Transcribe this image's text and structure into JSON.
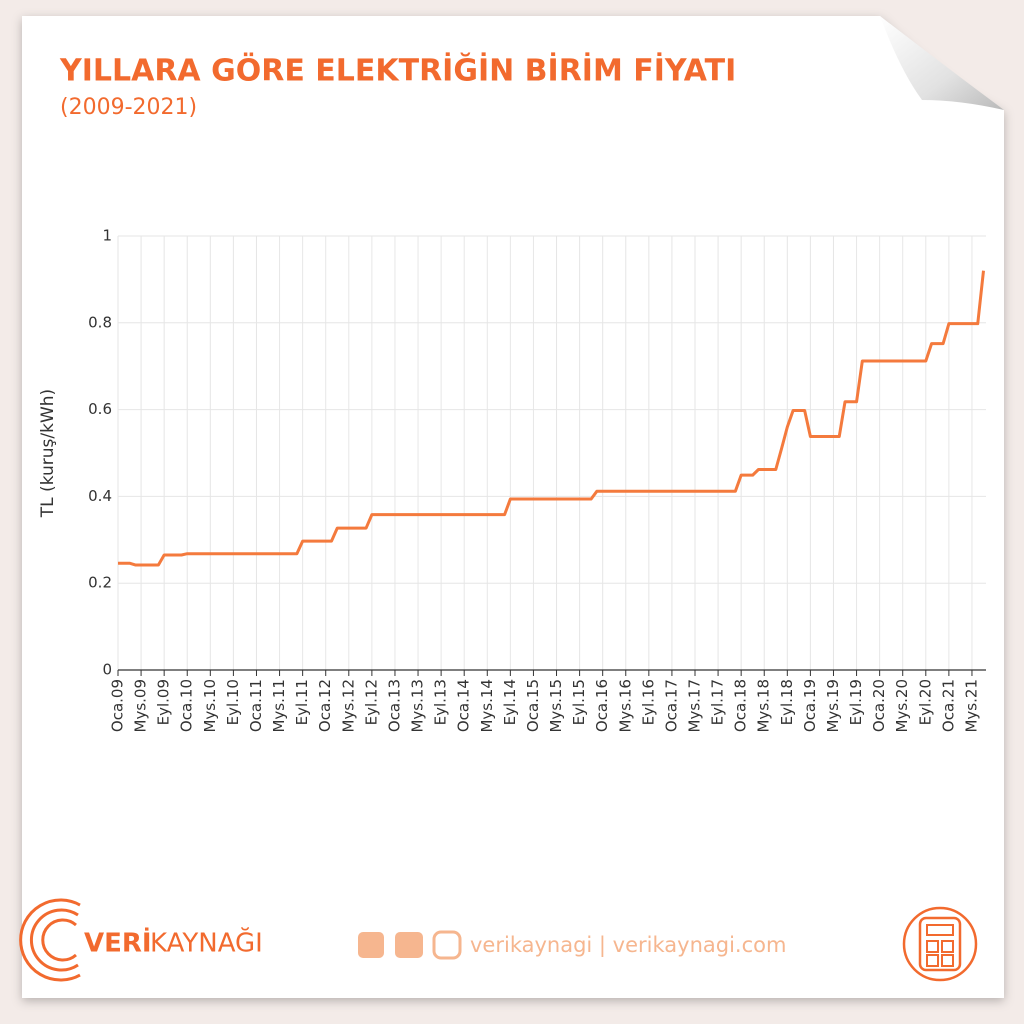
{
  "chart_data": {
    "type": "line",
    "title": "YILLARA GÖRE ELEKTRİĞİN BİRİM FİYATI",
    "subtitle": "(2009-2021)",
    "y_label": "TL (kuruş/kWh)",
    "color": "#f47a3d",
    "grid": true,
    "ylim": [
      0,
      1
    ],
    "yticks": [
      0,
      0.2,
      0.4,
      0.6,
      0.8,
      1
    ],
    "categories": [
      "Oca.09",
      null,
      null,
      null,
      "Mys.09",
      null,
      null,
      null,
      "Eyl.09",
      null,
      null,
      null,
      "Oca.10",
      null,
      null,
      null,
      "Mys.10",
      null,
      null,
      null,
      "Eyl.10",
      null,
      null,
      null,
      "Oca.11",
      null,
      null,
      null,
      "Mys.11",
      null,
      null,
      null,
      "Eyl.11",
      null,
      null,
      null,
      "Oca.12",
      null,
      null,
      null,
      "Mys.12",
      null,
      null,
      null,
      "Eyl.12",
      null,
      null,
      null,
      "Oca.13",
      null,
      null,
      null,
      "Mys.13",
      null,
      null,
      null,
      "Eyl.13",
      null,
      null,
      null,
      "Oca.14",
      null,
      null,
      null,
      "Mys.14",
      null,
      null,
      null,
      "Eyl.14",
      null,
      null,
      null,
      "Oca.15",
      null,
      null,
      null,
      "Mys.15",
      null,
      null,
      null,
      "Eyl.15",
      null,
      null,
      null,
      "Oca.16",
      null,
      null,
      null,
      "Mys.16",
      null,
      null,
      null,
      "Eyl.16",
      null,
      null,
      null,
      "Oca.17",
      null,
      null,
      null,
      "Mys.17",
      null,
      null,
      null,
      "Eyl.17",
      null,
      null,
      null,
      "Oca.18",
      null,
      null,
      null,
      "Mys.18",
      null,
      null,
      null,
      "Eyl.18",
      null,
      null,
      null,
      "Oca.19",
      null,
      null,
      null,
      "Mys.19",
      null,
      null,
      null,
      "Eyl.19",
      null,
      null,
      null,
      "Oca.20",
      null,
      null,
      null,
      "Mys.20",
      null,
      null,
      null,
      "Eyl.20",
      null,
      null,
      null,
      "Oca.21",
      null,
      null,
      null,
      "Mys.21",
      null,
      null
    ],
    "values": [
      0.246,
      0.246,
      0.246,
      0.242,
      0.242,
      0.242,
      0.242,
      0.242,
      0.265,
      0.265,
      0.265,
      0.265,
      0.268,
      0.268,
      0.268,
      0.268,
      0.268,
      0.268,
      0.268,
      0.268,
      0.268,
      0.268,
      0.268,
      0.268,
      0.268,
      0.268,
      0.268,
      0.268,
      0.268,
      0.268,
      0.268,
      0.268,
      0.297,
      0.297,
      0.297,
      0.297,
      0.297,
      0.297,
      0.327,
      0.327,
      0.327,
      0.327,
      0.327,
      0.327,
      0.358,
      0.358,
      0.358,
      0.358,
      0.358,
      0.358,
      0.358,
      0.358,
      0.358,
      0.358,
      0.358,
      0.358,
      0.358,
      0.358,
      0.358,
      0.358,
      0.358,
      0.358,
      0.358,
      0.358,
      0.358,
      0.358,
      0.358,
      0.358,
      0.394,
      0.394,
      0.394,
      0.394,
      0.394,
      0.394,
      0.394,
      0.394,
      0.394,
      0.394,
      0.394,
      0.394,
      0.394,
      0.394,
      0.394,
      0.412,
      0.412,
      0.412,
      0.412,
      0.412,
      0.412,
      0.412,
      0.412,
      0.412,
      0.412,
      0.412,
      0.412,
      0.412,
      0.412,
      0.412,
      0.412,
      0.412,
      0.412,
      0.412,
      0.412,
      0.412,
      0.412,
      0.412,
      0.412,
      0.412,
      0.449,
      0.449,
      0.449,
      0.462,
      0.462,
      0.462,
      0.462,
      0.51,
      0.56,
      0.598,
      0.598,
      0.598,
      0.538,
      0.538,
      0.538,
      0.538,
      0.538,
      0.538,
      0.618,
      0.618,
      0.618,
      0.712,
      0.712,
      0.712,
      0.712,
      0.712,
      0.712,
      0.712,
      0.712,
      0.712,
      0.712,
      0.712,
      0.712,
      0.752,
      0.752,
      0.752,
      0.798,
      0.798,
      0.798,
      0.798,
      0.798,
      0.798,
      0.92
    ]
  },
  "footer": {
    "brand_bold": "VERİ",
    "brand_rest": "KAYNAĞI",
    "social": "verikaynagi | verikaynagi.com"
  }
}
